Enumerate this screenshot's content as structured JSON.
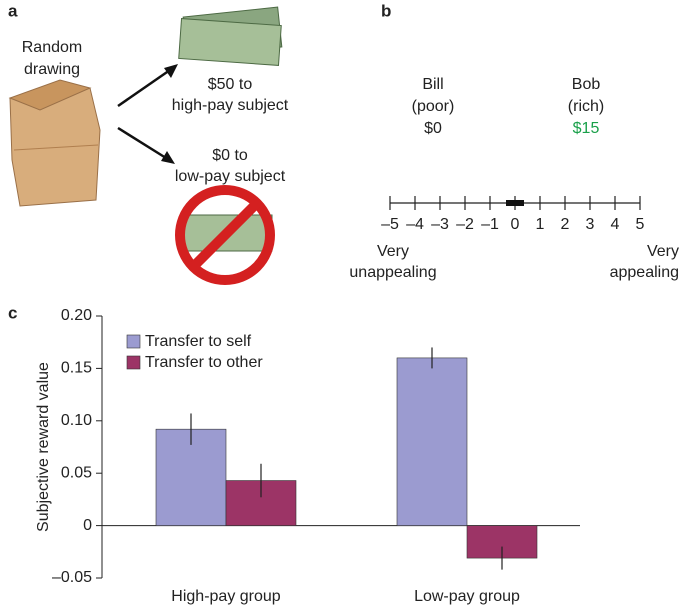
{
  "panel_a": {
    "label": "a",
    "draw_label": [
      "Random",
      "drawing"
    ],
    "high_label": [
      "$50 to",
      "high-pay subject"
    ],
    "low_label": [
      "$0 to",
      "low-pay subject"
    ]
  },
  "panel_b": {
    "label": "b",
    "people": [
      {
        "name": "Bill",
        "status": "(poor)",
        "amount": "$0",
        "color": "#222222"
      },
      {
        "name": "Bob",
        "status": "(rich)",
        "amount": "$15",
        "color": "#1aa04a"
      }
    ],
    "scale_ticks": [
      {
        "value": -5,
        "label": "–5"
      },
      {
        "value": -4,
        "label": "–4"
      },
      {
        "value": -3,
        "label": "–3"
      },
      {
        "value": -2,
        "label": "–2"
      },
      {
        "value": -1,
        "label": "–1"
      },
      0,
      1,
      2,
      3,
      4,
      5
    ],
    "marker": 0,
    "left_label": [
      "Very",
      "unappealing"
    ],
    "right_label": [
      "Very",
      "appealing"
    ]
  },
  "chart_data": {
    "type": "bar",
    "panel_label": "c",
    "y_label": "Subjective reward value",
    "categories": [
      "High-pay group",
      "Low-pay group"
    ],
    "series": [
      {
        "name": "Transfer to self",
        "color": "#9b9bd0",
        "values": [
          0.092,
          0.16
        ],
        "errors": [
          0.015,
          0.01
        ]
      },
      {
        "name": "Transfer to other",
        "color": "#9c3466",
        "values": [
          0.043,
          -0.031
        ],
        "errors": [
          0.016,
          0.011
        ]
      }
    ],
    "ylim": [
      -0.05,
      0.2
    ],
    "yticks": [
      {
        "value": -0.05,
        "label": "–0.05"
      },
      0,
      {
        "value": 0.05,
        "label": "0.05"
      },
      {
        "value": 0.1,
        "label": "0.10"
      },
      {
        "value": 0.15,
        "label": "0.15"
      },
      {
        "value": 0.2,
        "label": "0.20"
      }
    ]
  }
}
